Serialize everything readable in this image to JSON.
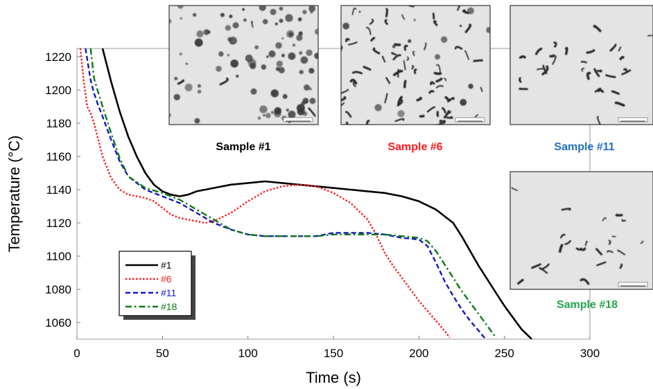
{
  "chart_data": {
    "type": "line",
    "xlabel": "Time (s)",
    "ylabel": "Temperature (°C)",
    "xlim": [
      0,
      300
    ],
    "ylim": [
      1050,
      1225
    ],
    "xticks": [
      "0",
      "50",
      "100",
      "150",
      "200",
      "250",
      "300"
    ],
    "yticks": [
      "1060",
      "1080",
      "1100",
      "1120",
      "1140",
      "1160",
      "1180",
      "1200",
      "1220"
    ],
    "grid": false,
    "legend_position": "bottom-left",
    "series": [
      {
        "name": "#1",
        "color": "#000000",
        "style": "solid",
        "x": [
          15,
          20,
          25,
          30,
          35,
          40,
          45,
          50,
          55,
          60,
          65,
          70,
          80,
          90,
          100,
          110,
          120,
          130,
          140,
          150,
          160,
          170,
          180,
          190,
          200,
          210,
          220,
          225,
          230,
          235,
          240,
          245,
          250,
          255,
          260,
          266
        ],
        "y": [
          1225,
          1205,
          1187,
          1172,
          1160,
          1150,
          1143,
          1139,
          1137,
          1136,
          1137,
          1139,
          1141,
          1143,
          1144,
          1145,
          1144,
          1143,
          1142,
          1141,
          1140,
          1139,
          1138,
          1136,
          1133,
          1128,
          1120,
          1112,
          1103,
          1094,
          1086,
          1078,
          1070,
          1063,
          1056,
          1050
        ]
      },
      {
        "name": "#6",
        "color": "#ff1a1a",
        "style": "dotted",
        "x": [
          2,
          4,
          6,
          8,
          10,
          12,
          15,
          20,
          25,
          30,
          35,
          40,
          45,
          50,
          55,
          60,
          65,
          70,
          75,
          80,
          90,
          100,
          110,
          120,
          130,
          140,
          150,
          160,
          170,
          175,
          180,
          185,
          190,
          195,
          200,
          205,
          210,
          215,
          218
        ],
        "y": [
          1225,
          1205,
          1190,
          1186,
          1180,
          1172,
          1160,
          1147,
          1140,
          1137,
          1136,
          1135,
          1133,
          1129,
          1125,
          1123,
          1122,
          1121,
          1120,
          1121,
          1126,
          1133,
          1139,
          1142,
          1143,
          1142,
          1138,
          1132,
          1122,
          1113,
          1102,
          1094,
          1087,
          1080,
          1073,
          1067,
          1061,
          1055,
          1051
        ]
      },
      {
        "name": "#11",
        "color": "#1414c8",
        "style": "dashed",
        "x": [
          5,
          8,
          10,
          12,
          15,
          20,
          25,
          30,
          40,
          50,
          60,
          70,
          80,
          90,
          100,
          110,
          120,
          130,
          140,
          150,
          160,
          170,
          180,
          190,
          200,
          205,
          210,
          215,
          220,
          225,
          230,
          235,
          239
        ],
        "y": [
          1225,
          1206,
          1198,
          1192,
          1184,
          1170,
          1157,
          1148,
          1140,
          1136,
          1132,
          1126,
          1120,
          1116,
          1113,
          1112,
          1112,
          1112,
          1112,
          1114,
          1114,
          1114,
          1113,
          1111,
          1110,
          1106,
          1096,
          1085,
          1076,
          1068,
          1061,
          1055,
          1050
        ]
      },
      {
        "name": "#18",
        "color": "#0a7a14",
        "style": "dash-dot",
        "x": [
          8,
          10,
          12,
          15,
          20,
          25,
          30,
          40,
          50,
          60,
          70,
          80,
          90,
          100,
          110,
          120,
          130,
          140,
          150,
          160,
          170,
          180,
          190,
          200,
          205,
          210,
          215,
          220,
          225,
          230,
          235,
          240,
          245
        ],
        "y": [
          1225,
          1207,
          1200,
          1190,
          1174,
          1159,
          1148,
          1141,
          1138,
          1134,
          1128,
          1122,
          1116,
          1113,
          1112,
          1112,
          1112,
          1112,
          1113,
          1113,
          1113,
          1113,
          1112,
          1111,
          1109,
          1103,
          1095,
          1087,
          1079,
          1072,
          1065,
          1058,
          1051
        ]
      }
    ]
  },
  "insets": [
    {
      "label": "Sample #1",
      "label_color": "#000000",
      "texture": "spheroidal"
    },
    {
      "label": "Sample #6",
      "label_color": "#ff1a1a",
      "texture": "mixed"
    },
    {
      "label": "Sample #11",
      "label_color": "#1f6fbf",
      "texture": "compacted"
    },
    {
      "label": "Sample #18",
      "label_color": "#22a34a",
      "texture": "compacted-sparse"
    }
  ]
}
